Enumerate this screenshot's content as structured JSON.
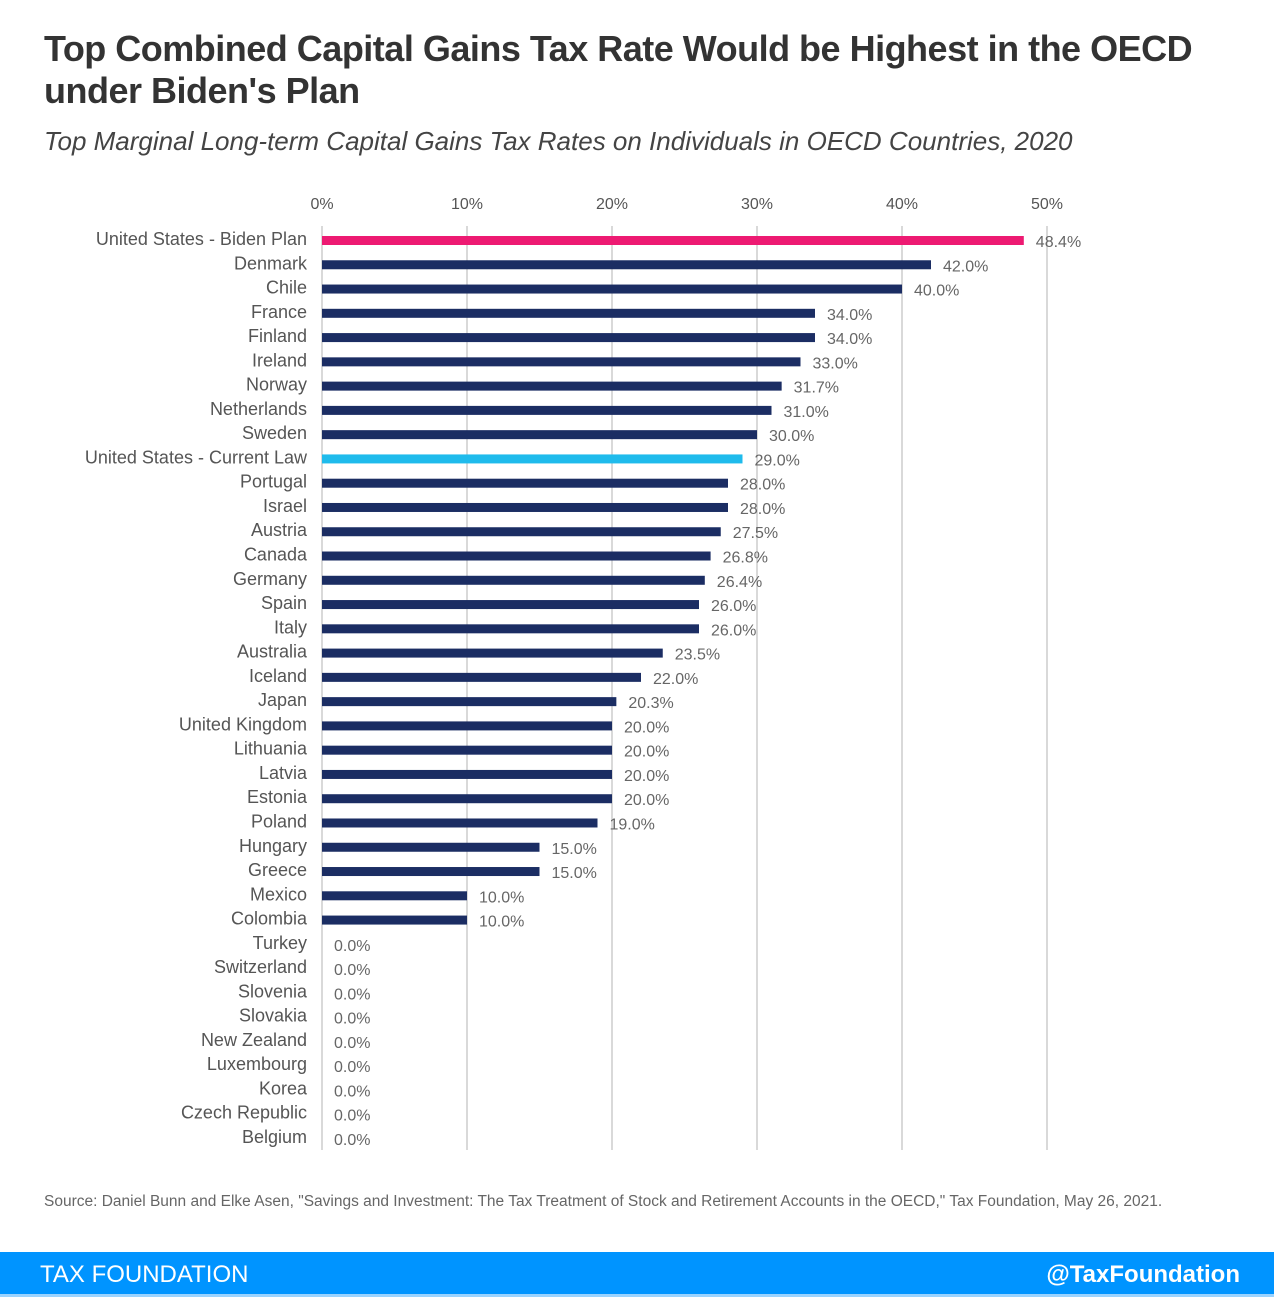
{
  "header": {
    "title": "Top Combined Capital Gains Tax Rate Would be Highest in the OECD under Biden's Plan",
    "subtitle": "Top Marginal Long-term Capital Gains Tax Rates on Individuals in OECD Countries, 2020"
  },
  "chart_data": {
    "type": "bar",
    "orientation": "horizontal",
    "title": "Top Marginal Long-term Capital Gains Tax Rates on Individuals in OECD Countries, 2020",
    "xlabel": "",
    "ylabel": "",
    "xlim": [
      0,
      50
    ],
    "x_ticks": [
      "0%",
      "10%",
      "20%",
      "30%",
      "40%",
      "50%"
    ],
    "x_tick_values": [
      0,
      10,
      20,
      30,
      40,
      50
    ],
    "grid": true,
    "categories": [
      "United States - Biden Plan",
      "Denmark",
      "Chile",
      "France",
      "Finland",
      "Ireland",
      "Norway",
      "Netherlands",
      "Sweden",
      "United States - Current Law",
      "Portugal",
      "Israel",
      "Austria",
      "Canada",
      "Germany",
      "Spain",
      "Italy",
      "Australia",
      "Iceland",
      "Japan",
      "United Kingdom",
      "Lithuania",
      "Latvia",
      "Estonia",
      "Poland",
      "Hungary",
      "Greece",
      "Mexico",
      "Colombia",
      "Turkey",
      "Switzerland",
      "Slovenia",
      "Slovakia",
      "New Zealand",
      "Luxembourg",
      "Korea",
      "Czech Republic",
      "Belgium"
    ],
    "values": [
      48.4,
      42.0,
      40.0,
      34.0,
      34.0,
      33.0,
      31.7,
      31.0,
      30.0,
      29.0,
      28.0,
      28.0,
      27.5,
      26.8,
      26.4,
      26.0,
      26.0,
      23.5,
      22.0,
      20.3,
      20.0,
      20.0,
      20.0,
      20.0,
      19.0,
      15.0,
      15.0,
      10.0,
      10.0,
      0,
      0,
      0,
      0,
      0,
      0,
      0,
      0,
      0
    ],
    "labels": [
      "48.4%",
      "42.0%",
      "40.0%",
      "34.0%",
      "34.0%",
      "33.0%",
      "31.7%",
      "31.0%",
      "30.0%",
      "29.0%",
      "28.0%",
      "28.0%",
      "27.5%",
      "26.8%",
      "26.4%",
      "26.0%",
      "26.0%",
      "23.5%",
      "22.0%",
      "20.3%",
      "20.0%",
      "20.0%",
      "20.0%",
      "20.0%",
      "19.0%",
      "15.0%",
      "15.0%",
      "10.0%",
      "10.0%",
      "0.0%",
      "0.0%",
      "0.0%",
      "0.0%",
      "0.0%",
      "0.0%",
      "0.0%",
      "0.0%",
      "0.0%"
    ],
    "highlight": {
      "United States - Biden Plan": "#ed1a72",
      "United States - Current Law": "#1fbbec"
    },
    "default_color": "#1b2d63"
  },
  "source": "Source: Daniel Bunn and Elke Asen, \"Savings and Investment: The Tax Treatment of Stock and Retirement Accounts in the OECD,\" Tax Foundation, May 26, 2021.",
  "footer": {
    "brand": "TAX FOUNDATION",
    "handle": "@TaxFoundation"
  }
}
